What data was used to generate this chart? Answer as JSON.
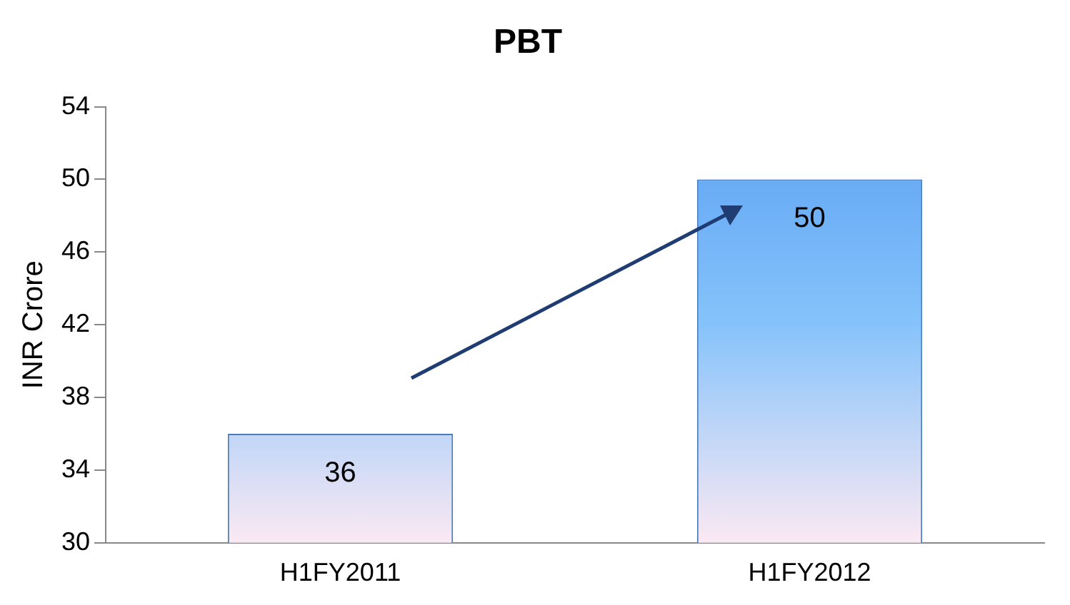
{
  "chart_data": {
    "type": "bar",
    "title": "PBT",
    "ylabel": "INR Crore",
    "categories": [
      "H1FY2011",
      "H1FY2012"
    ],
    "values": [
      36,
      50
    ],
    "color": "#5aa0f2",
    "ylim": [
      30,
      54
    ],
    "yticks": [
      30,
      34,
      38,
      42,
      46,
      50,
      54
    ],
    "grid": false,
    "data_labels": true,
    "legend": false
  }
}
